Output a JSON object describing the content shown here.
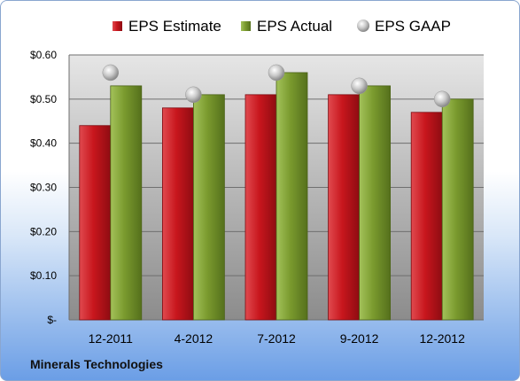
{
  "company_name": "Minerals Technologies",
  "colors": {
    "estimate": "#c8161d",
    "actual": "#7a9a2e",
    "gaap": "#b8b8b8"
  },
  "chart_data": {
    "type": "bar",
    "title": "",
    "xlabel": "",
    "ylabel": "",
    "categories": [
      "12-2011",
      "4-2012",
      "7-2012",
      "9-2012",
      "12-2012"
    ],
    "series": [
      {
        "name": "EPS Estimate",
        "type": "bar",
        "values": [
          0.44,
          0.48,
          0.51,
          0.51,
          0.47
        ]
      },
      {
        "name": "EPS Actual",
        "type": "bar",
        "values": [
          0.53,
          0.51,
          0.56,
          0.53,
          0.5
        ]
      },
      {
        "name": "EPS GAAP",
        "type": "scatter",
        "values": [
          0.56,
          0.51,
          0.56,
          0.53,
          0.5
        ]
      }
    ],
    "ylim": [
      0,
      0.6
    ],
    "yticks": [
      0,
      0.1,
      0.2,
      0.3,
      0.4,
      0.5,
      0.6
    ],
    "ytick_labels": [
      "$-",
      "$0.10",
      "$0.20",
      "$0.30",
      "$0.40",
      "$0.50",
      "$0.60"
    ],
    "grid": true,
    "legend_position": "top"
  }
}
